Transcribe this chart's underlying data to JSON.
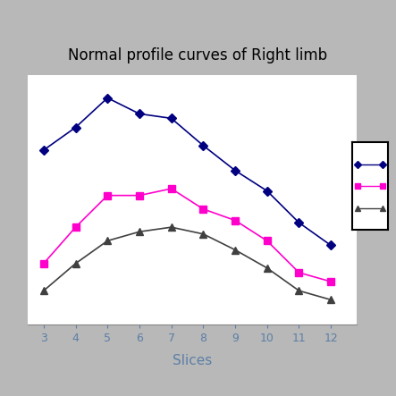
{
  "title": "Normal profile curves of Right limb",
  "xlabel": "Slices",
  "x": [
    3,
    4,
    5,
    6,
    7,
    8,
    9,
    10,
    11,
    12
  ],
  "blue_line": [
    72,
    82,
    95,
    88,
    86,
    74,
    63,
    54,
    40,
    30
  ],
  "magenta_line": [
    22,
    38,
    52,
    52,
    55,
    46,
    41,
    32,
    18,
    14
  ],
  "black_line": [
    10,
    22,
    32,
    36,
    38,
    35,
    28,
    20,
    10,
    6
  ],
  "blue_color": "#000080",
  "magenta_color": "#FF00CC",
  "black_color": "#404040",
  "bg_color": "#B8B8B8",
  "plot_bg_color": "#FFFFFF",
  "title_fontsize": 12,
  "xlabel_fontsize": 11,
  "xlim": [
    2.5,
    12.8
  ],
  "ylim": [
    -5,
    105
  ],
  "grid_color": "#AAAAAA",
  "tick_color": "#5B7FA6",
  "label_color": "#5B7FA6"
}
